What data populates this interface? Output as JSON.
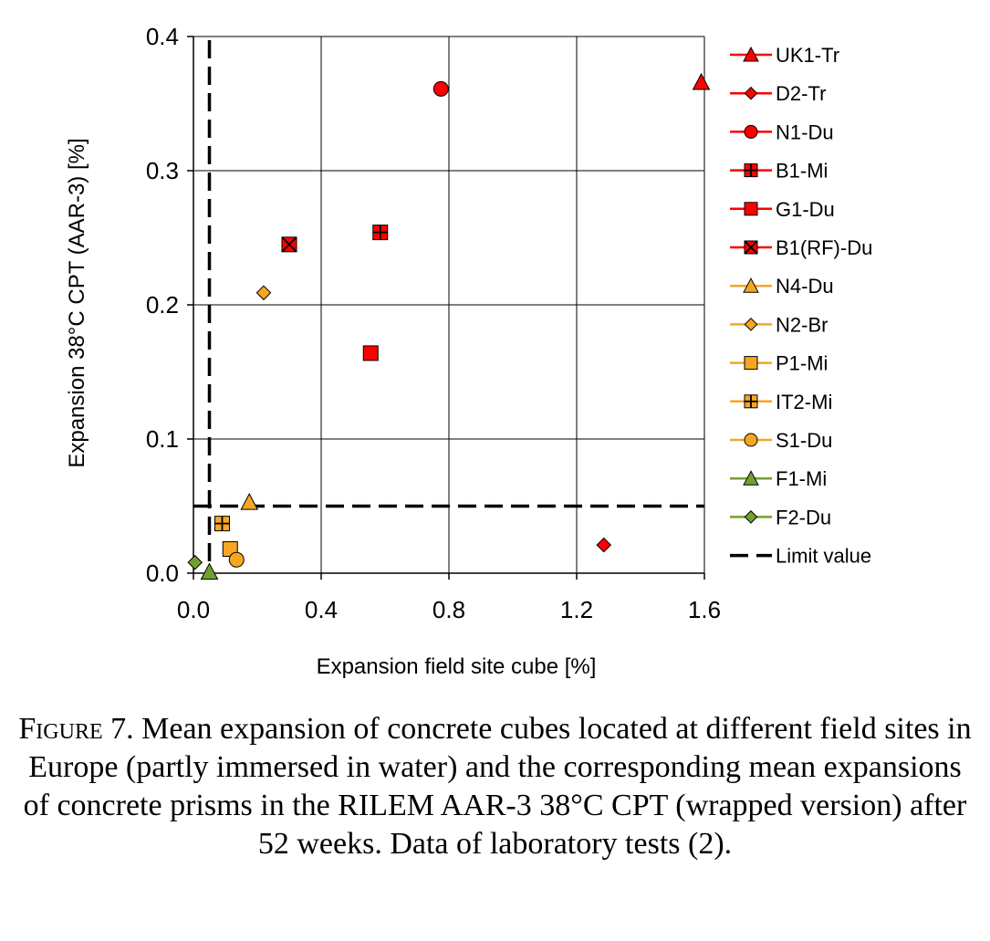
{
  "chart_data": {
    "type": "scatter",
    "xlabel": "Expansion field site cube [%]",
    "ylabel": "Expansion 38°C CPT (AAR-3) [%]",
    "xlim": [
      0,
      1.6
    ],
    "ylim": [
      0,
      0.4
    ],
    "xticks": [
      "0.0",
      "0.4",
      "0.8",
      "1.2",
      "1.6"
    ],
    "yticks": [
      "0.0",
      "0.1",
      "0.2",
      "0.3",
      "0.4"
    ],
    "grid": true,
    "legend_position": "right",
    "series": [
      {
        "name": "UK1-Tr",
        "marker": "triangle",
        "color": "#ff0000",
        "x": 1.59,
        "y": 0.366
      },
      {
        "name": "D2-Tr",
        "marker": "diamond",
        "color": "#ff0000",
        "x": 1.285,
        "y": 0.021
      },
      {
        "name": "N1-Du",
        "marker": "circle",
        "color": "#ff0000",
        "x": 0.775,
        "y": 0.361
      },
      {
        "name": "B1-Mi",
        "marker": "square-plus",
        "color": "#ff0000",
        "x": 0.585,
        "y": 0.254
      },
      {
        "name": "G1-Du",
        "marker": "square",
        "color": "#ff0000",
        "x": 0.555,
        "y": 0.164
      },
      {
        "name": "B1(RF)-Du",
        "marker": "square-x",
        "color": "#ff0000",
        "x": 0.3,
        "y": 0.245
      },
      {
        "name": "N4-Du",
        "marker": "triangle",
        "color": "#f5a623",
        "x": 0.175,
        "y": 0.053
      },
      {
        "name": "N2-Br",
        "marker": "diamond",
        "color": "#f5a623",
        "x": 0.22,
        "y": 0.209
      },
      {
        "name": "P1-Mi",
        "marker": "square",
        "color": "#f5a623",
        "x": 0.115,
        "y": 0.018
      },
      {
        "name": "IT2-Mi",
        "marker": "square-plus",
        "color": "#f5a623",
        "x": 0.09,
        "y": 0.037
      },
      {
        "name": "S1-Du",
        "marker": "circle",
        "color": "#f5a623",
        "x": 0.135,
        "y": 0.01
      },
      {
        "name": "F1-Mi",
        "marker": "triangle",
        "color": "#70a030",
        "x": 0.05,
        "y": 0.001
      },
      {
        "name": "F2-Du",
        "marker": "diamond",
        "color": "#70a030",
        "x": 0.005,
        "y": 0.008
      }
    ],
    "limit": {
      "name": "Limit value",
      "x": 0.05,
      "y": 0.05,
      "color": "#000000"
    }
  },
  "caption": {
    "figure_label": "Figure 7.",
    "text": " Mean expansion of concrete cubes located at different field sites in Europe (partly immersed in water) and the corresponding mean expansions of concrete prisms in the RILEM AAR-3 38°C CPT (wrapped version) after 52 weeks. Data of laboratory tests (2)."
  }
}
